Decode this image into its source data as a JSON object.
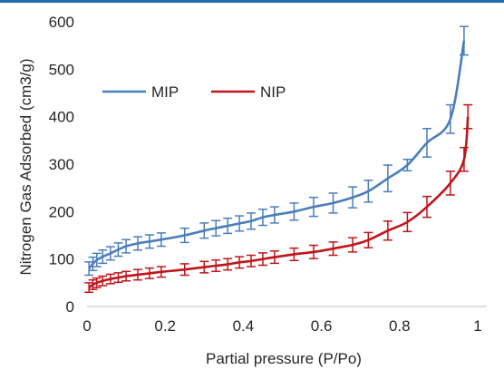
{
  "chart_data": {
    "type": "line",
    "title": "",
    "xlabel": "Partial pressure (P/Po)",
    "ylabel": "Nitrogen Gas Adsorbed (cm3/g)",
    "xlim": [
      0,
      1
    ],
    "ylim": [
      0,
      600
    ],
    "x_ticks": [
      0,
      0.2,
      0.4,
      0.6,
      0.8,
      1
    ],
    "x_tick_labels": [
      "0",
      "0.2",
      "0.4",
      "0.6",
      "0.8",
      "1"
    ],
    "y_ticks": [
      0,
      100,
      200,
      300,
      400,
      500,
      600
    ],
    "y_tick_labels": [
      "0",
      "100",
      "200",
      "300",
      "400",
      "500",
      "600"
    ],
    "grid": false,
    "legend_position": "top-left inside plot",
    "series": [
      {
        "name": "MIP",
        "color": "#4a7ebb",
        "error_bars": true,
        "x": [
          0.005,
          0.015,
          0.025,
          0.04,
          0.06,
          0.08,
          0.1,
          0.13,
          0.16,
          0.19,
          0.25,
          0.3,
          0.33,
          0.36,
          0.39,
          0.42,
          0.45,
          0.48,
          0.53,
          0.58,
          0.63,
          0.68,
          0.72,
          0.77,
          0.82,
          0.87,
          0.93,
          0.965
        ],
        "y": [
          80,
          90,
          98,
          105,
          112,
          120,
          127,
          133,
          137,
          141,
          150,
          160,
          165,
          170,
          175,
          180,
          188,
          193,
          200,
          210,
          218,
          230,
          243,
          270,
          298,
          345,
          395,
          560
        ],
        "err": [
          14,
          14,
          14,
          14,
          14,
          14,
          14,
          14,
          14,
          14,
          15,
          16,
          16,
          16,
          16,
          17,
          17,
          17,
          18,
          20,
          21,
          22,
          23,
          28,
          12,
          30,
          30,
          30
        ]
      },
      {
        "name": "NIP",
        "color": "#c0151a",
        "error_bars": true,
        "x": [
          0.005,
          0.015,
          0.025,
          0.04,
          0.06,
          0.08,
          0.1,
          0.13,
          0.16,
          0.19,
          0.25,
          0.3,
          0.33,
          0.36,
          0.39,
          0.42,
          0.45,
          0.48,
          0.53,
          0.58,
          0.63,
          0.68,
          0.72,
          0.77,
          0.82,
          0.87,
          0.93,
          0.965,
          0.975
        ],
        "y": [
          40,
          46,
          50,
          54,
          58,
          61,
          64,
          67,
          70,
          73,
          78,
          83,
          86,
          89,
          93,
          96,
          100,
          104,
          110,
          115,
          122,
          130,
          140,
          160,
          178,
          210,
          260,
          310,
          400
        ],
        "err": [
          10,
          10,
          10,
          10,
          10,
          10,
          10,
          11,
          11,
          11,
          12,
          12,
          12,
          12,
          12,
          12,
          13,
          13,
          13,
          14,
          14,
          15,
          16,
          20,
          20,
          22,
          25,
          25,
          25
        ]
      }
    ]
  }
}
